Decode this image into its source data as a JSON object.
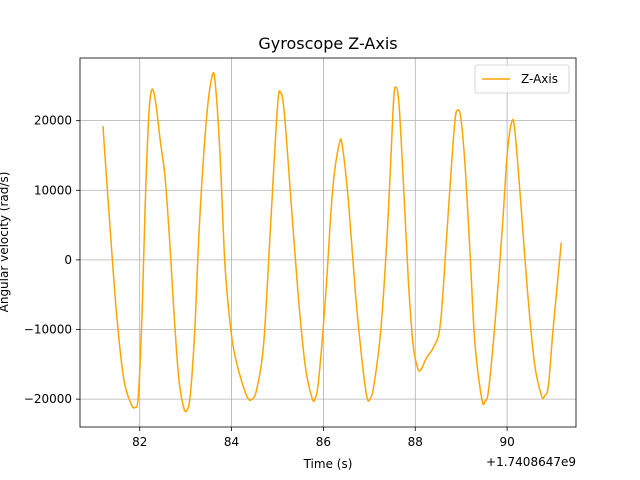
{
  "chart_data": {
    "type": "line",
    "title": "Gyroscope Z-Axis",
    "xlabel": "Time (s)",
    "ylabel": "Angular velocity (rad/s)",
    "x_offset_label": "+1.7408647e9",
    "xlim": [
      80.7,
      91.5
    ],
    "ylim": [
      -24000,
      29000
    ],
    "xticks": [
      82,
      84,
      86,
      88,
      90
    ],
    "yticks": [
      -20000,
      -10000,
      0,
      10000,
      20000
    ],
    "grid": true,
    "legend_position": "top-right",
    "series": [
      {
        "name": "Z-Axis",
        "color": "#FFA500",
        "points": [
          [
            81.2,
            19200
          ],
          [
            81.35,
            5000
          ],
          [
            81.5,
            -8000
          ],
          [
            81.65,
            -17000
          ],
          [
            81.8,
            -20500
          ],
          [
            81.9,
            -21200
          ],
          [
            81.97,
            -19500
          ],
          [
            82.05,
            -8000
          ],
          [
            82.12,
            8000
          ],
          [
            82.2,
            21000
          ],
          [
            82.27,
            24500
          ],
          [
            82.35,
            22500
          ],
          [
            82.45,
            17000
          ],
          [
            82.55,
            12000
          ],
          [
            82.65,
            3000
          ],
          [
            82.75,
            -8000
          ],
          [
            82.85,
            -17000
          ],
          [
            82.95,
            -21000
          ],
          [
            83.02,
            -21700
          ],
          [
            83.1,
            -19500
          ],
          [
            83.2,
            -10000
          ],
          [
            83.3,
            5000
          ],
          [
            83.45,
            20000
          ],
          [
            83.58,
            26500
          ],
          [
            83.65,
            25000
          ],
          [
            83.75,
            15000
          ],
          [
            83.85,
            0
          ],
          [
            83.95,
            -8000
          ],
          [
            84.05,
            -13000
          ],
          [
            84.2,
            -17000
          ],
          [
            84.35,
            -19800
          ],
          [
            84.45,
            -20000
          ],
          [
            84.55,
            -18500
          ],
          [
            84.7,
            -12000
          ],
          [
            84.85,
            5000
          ],
          [
            85.0,
            22000
          ],
          [
            85.07,
            24000
          ],
          [
            85.15,
            21000
          ],
          [
            85.3,
            8000
          ],
          [
            85.45,
            -5000
          ],
          [
            85.6,
            -15000
          ],
          [
            85.75,
            -19800
          ],
          [
            85.82,
            -19900
          ],
          [
            85.9,
            -17000
          ],
          [
            86.05,
            -5000
          ],
          [
            86.2,
            10000
          ],
          [
            86.35,
            16800
          ],
          [
            86.42,
            16000
          ],
          [
            86.55,
            8000
          ],
          [
            86.7,
            -5000
          ],
          [
            86.85,
            -15000
          ],
          [
            86.95,
            -19800
          ],
          [
            87.02,
            -19900
          ],
          [
            87.1,
            -18000
          ],
          [
            87.25,
            -10000
          ],
          [
            87.4,
            5000
          ],
          [
            87.52,
            22000
          ],
          [
            87.58,
            24800
          ],
          [
            87.65,
            22000
          ],
          [
            87.75,
            10000
          ],
          [
            87.85,
            -3000
          ],
          [
            87.95,
            -12000
          ],
          [
            88.05,
            -15500
          ],
          [
            88.12,
            -15800
          ],
          [
            88.25,
            -14000
          ],
          [
            88.4,
            -12500
          ],
          [
            88.55,
            -9000
          ],
          [
            88.7,
            5000
          ],
          [
            88.85,
            19000
          ],
          [
            88.92,
            21500
          ],
          [
            89.0,
            20000
          ],
          [
            89.1,
            12000
          ],
          [
            89.2,
            0
          ],
          [
            89.3,
            -12000
          ],
          [
            89.45,
            -20000
          ],
          [
            89.52,
            -20300
          ],
          [
            89.6,
            -18500
          ],
          [
            89.75,
            -8000
          ],
          [
            89.9,
            5000
          ],
          [
            90.0,
            15000
          ],
          [
            90.1,
            19800
          ],
          [
            90.17,
            18500
          ],
          [
            90.3,
            8000
          ],
          [
            90.45,
            -5000
          ],
          [
            90.6,
            -15000
          ],
          [
            90.75,
            -19500
          ],
          [
            90.82,
            -19500
          ],
          [
            90.9,
            -18000
          ],
          [
            91.0,
            -10000
          ],
          [
            91.1,
            -3000
          ],
          [
            91.18,
            2500
          ]
        ]
      }
    ]
  }
}
